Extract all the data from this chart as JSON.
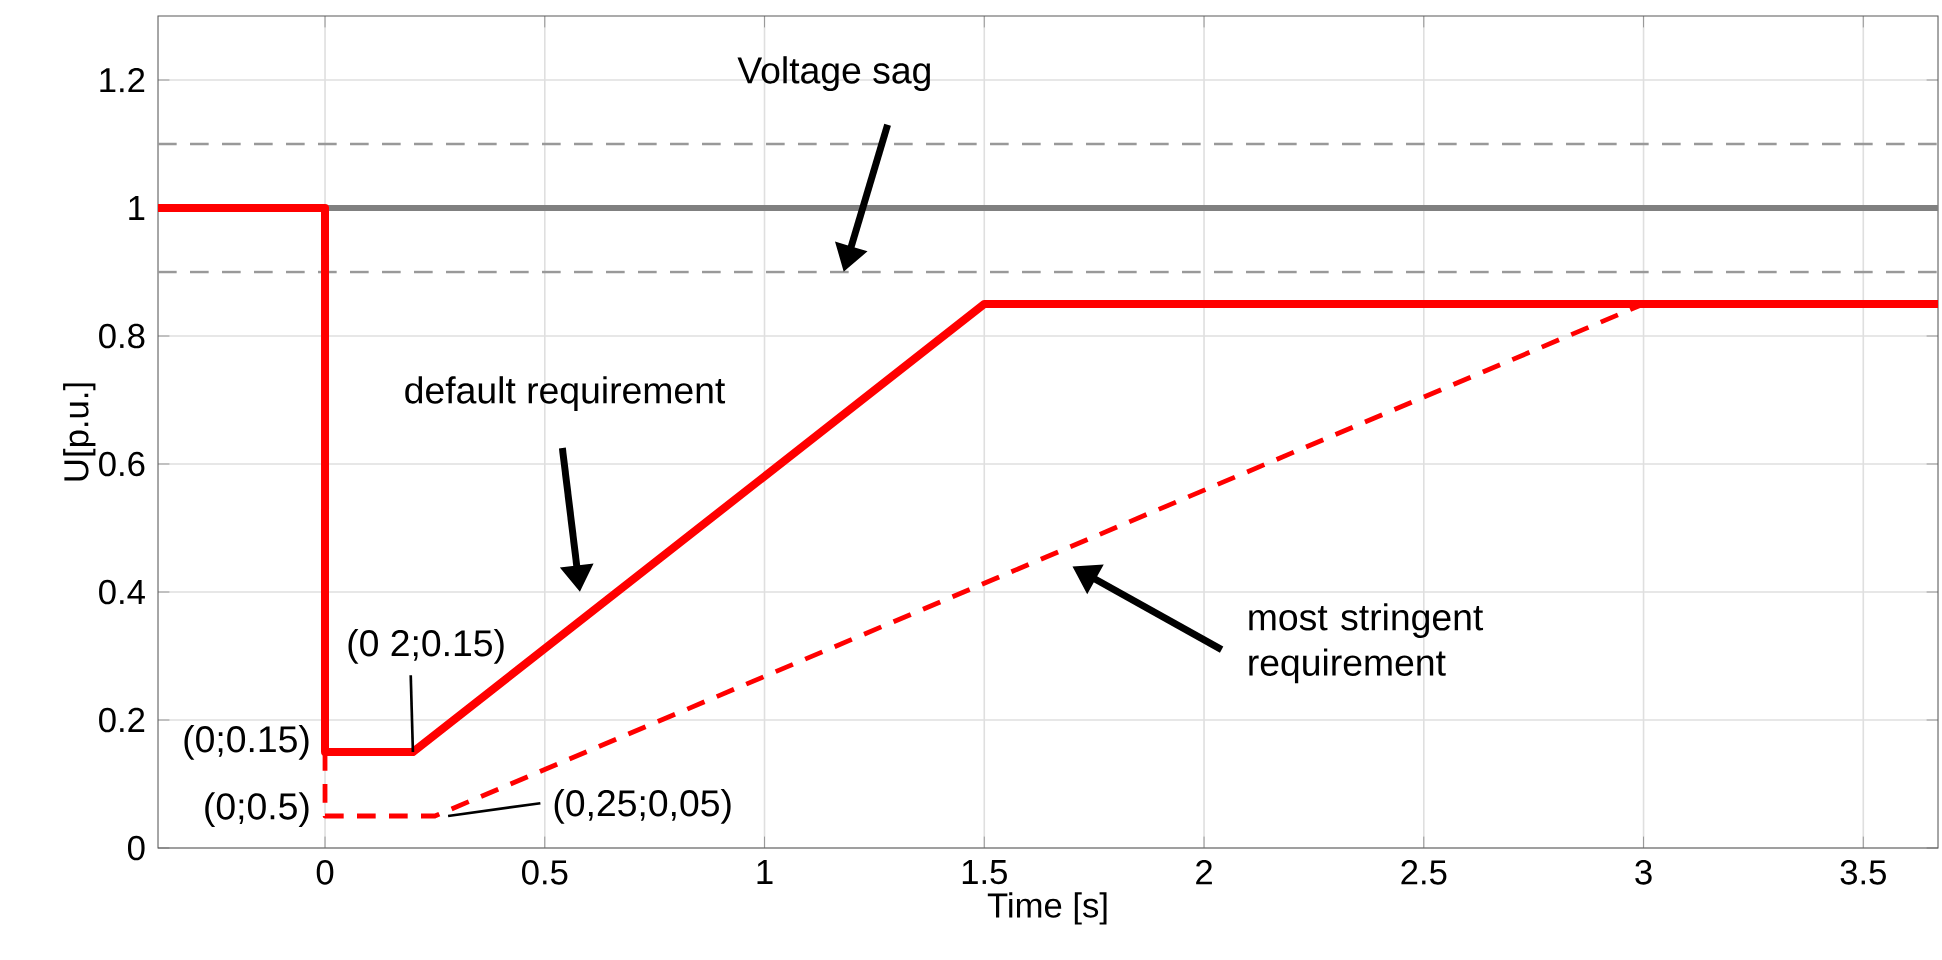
{
  "chart_data": {
    "type": "line",
    "xlabel": "Time [s]",
    "ylabel": "U[p.u.]",
    "xlim": [
      -0.38,
      3.67
    ],
    "ylim": [
      0,
      1.3
    ],
    "xticks": [
      0,
      0.5,
      1,
      1.5,
      2,
      2.5,
      3,
      3.5
    ],
    "yticks": [
      0,
      0.2,
      0.4,
      0.6,
      0.8,
      1,
      1.2
    ],
    "grid": true,
    "marker": "none",
    "series": [
      {
        "color": "#ff0000",
        "line_style": "solid",
        "x": [
          -0.38,
          0,
          0,
          0.2,
          1.5,
          3.67
        ],
        "values": [
          1,
          1,
          0.15,
          0.15,
          0.85,
          0.85
        ]
      },
      {
        "color": "#ff0000",
        "line_style": "dashed",
        "x": [
          0,
          0,
          0.25,
          3,
          3.67
        ],
        "values": [
          0.15,
          0.05,
          0.05,
          0.85,
          0.85
        ]
      }
    ],
    "ref_lines": [
      {
        "axis": "y",
        "value": 1,
        "color": "#808080",
        "line_style": "solid"
      },
      {
        "axis": "y",
        "value": 1.1,
        "color": "#999999",
        "line_style": "dashed"
      },
      {
        "axis": "y",
        "value": 0.9,
        "color": "#999999",
        "line_style": "dashed"
      }
    ],
    "annotations": [
      "Voltage sag",
      "default requirement",
      "most stringent requirement",
      {
        "text": "(0 2;0.15)",
        "x": 0.2,
        "y": 0.15
      },
      {
        "text": "(0;0.15)",
        "x": 0,
        "y": 0.15
      },
      {
        "text": "(0;0.5)",
        "x": 0,
        "y": 0.05
      },
      {
        "text": "(0,25;0,05)",
        "x": 0.28,
        "y": 0.05
      }
    ]
  }
}
